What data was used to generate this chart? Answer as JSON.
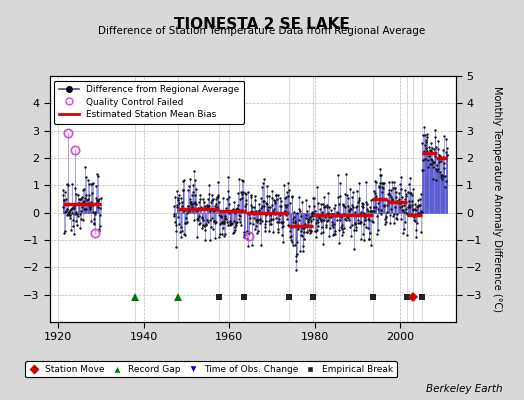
{
  "title": "TIONESTA 2 SE LAKE",
  "subtitle": "Difference of Station Temperature Data from Regional Average",
  "ylabel": "Monthly Temperature Anomaly Difference (°C)",
  "xlabel_credit": "Berkeley Earth",
  "xlim": [
    1918,
    2013
  ],
  "ylim": [
    -4,
    5
  ],
  "yticks_left": [
    -3,
    -2,
    -1,
    0,
    1,
    2,
    3,
    4
  ],
  "yticks_right": [
    -3,
    -2,
    -1,
    0,
    1,
    2,
    3,
    4,
    5
  ],
  "xticks": [
    1920,
    1940,
    1960,
    1980,
    2000
  ],
  "bg_color": "#d8d8d8",
  "plot_bg_color": "#ffffff",
  "line_color": "#4444cc",
  "dot_color": "#111111",
  "bias_color": "#dd0000",
  "qc_color": "#dd44dd",
  "station_move_color": "#cc0000",
  "record_gap_color": "#007700",
  "tobs_color": "#0000cc",
  "empirical_break_color": "#222222",
  "seed": 77,
  "year_start": 1921,
  "year_end": 2011,
  "gap_start": 1930,
  "gap_end": 1947,
  "bias_segments": [
    {
      "start": 1921.0,
      "end": 1930.0,
      "value": 0.3
    },
    {
      "start": 1948.0,
      "end": 1957.5,
      "value": 0.12
    },
    {
      "start": 1957.5,
      "end": 1964.0,
      "value": 0.05
    },
    {
      "start": 1964.0,
      "end": 1974.0,
      "value": 0.0
    },
    {
      "start": 1974.0,
      "end": 1979.5,
      "value": -0.5
    },
    {
      "start": 1979.5,
      "end": 1993.5,
      "value": -0.1
    },
    {
      "start": 1993.5,
      "end": 1997.0,
      "value": 0.5
    },
    {
      "start": 1997.0,
      "end": 2001.5,
      "value": 0.4
    },
    {
      "start": 2001.5,
      "end": 2005.0,
      "value": -0.1
    },
    {
      "start": 2005.0,
      "end": 2008.5,
      "value": 2.2
    },
    {
      "start": 2008.5,
      "end": 2011.0,
      "value": 2.0
    }
  ],
  "station_moves": [
    2003.0
  ],
  "record_gaps": [
    1938.0,
    1948.0
  ],
  "tobs_changes": [],
  "empirical_breaks": [
    1957.5,
    1963.5,
    1974.0,
    1979.5,
    1993.5,
    2001.5,
    2005.0
  ],
  "qc_fail_indices": []
}
